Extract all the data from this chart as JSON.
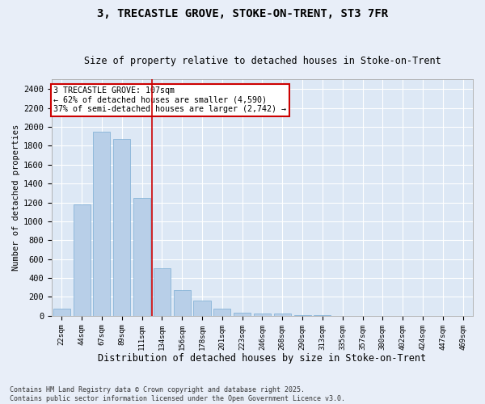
{
  "title1": "3, TRECASTLE GROVE, STOKE-ON-TRENT, ST3 7FR",
  "title2": "Size of property relative to detached houses in Stoke-on-Trent",
  "xlabel": "Distribution of detached houses by size in Stoke-on-Trent",
  "ylabel": "Number of detached properties",
  "categories": [
    "22sqm",
    "44sqm",
    "67sqm",
    "89sqm",
    "111sqm",
    "134sqm",
    "156sqm",
    "178sqm",
    "201sqm",
    "223sqm",
    "246sqm",
    "268sqm",
    "290sqm",
    "313sqm",
    "335sqm",
    "357sqm",
    "380sqm",
    "402sqm",
    "424sqm",
    "447sqm",
    "469sqm"
  ],
  "values": [
    75,
    1175,
    1950,
    1875,
    1250,
    500,
    270,
    165,
    75,
    30,
    25,
    25,
    10,
    5,
    3,
    2,
    2,
    1,
    1,
    1,
    1
  ],
  "bar_color": "#b8cfe8",
  "bar_edge_color": "#7aadd4",
  "background_color": "#dde8f5",
  "grid_color": "#ffffff",
  "vline_x": 4.5,
  "vline_color": "#cc0000",
  "annotation_text": "3 TRECASTLE GROVE: 107sqm\n← 62% of detached houses are smaller (4,590)\n37% of semi-detached houses are larger (2,742) →",
  "annotation_box_color": "#cc0000",
  "ylim": [
    0,
    2500
  ],
  "yticks": [
    0,
    200,
    400,
    600,
    800,
    1000,
    1200,
    1400,
    1600,
    1800,
    2000,
    2200,
    2400
  ],
  "footer1": "Contains HM Land Registry data © Crown copyright and database right 2025.",
  "footer2": "Contains public sector information licensed under the Open Government Licence v3.0."
}
